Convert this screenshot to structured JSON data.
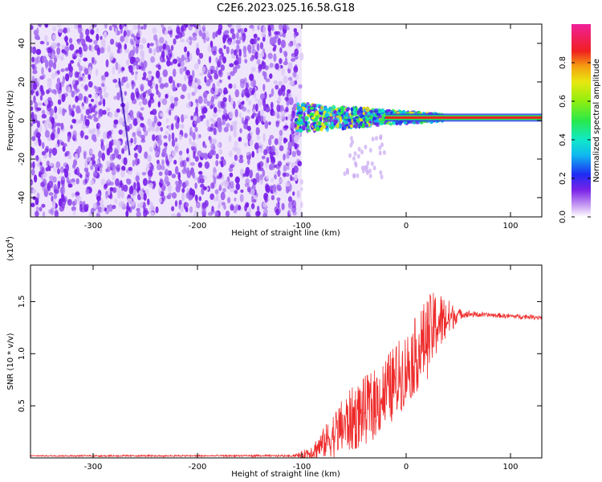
{
  "title": "C2E6.2023.025.16.58.G18",
  "colors": {
    "snr_line": "#ee2a2a",
    "waterfall_purple": "#7a22e8",
    "waterfall_light": "#d8c2f6"
  },
  "chart_data": [
    {
      "type": "heatmap",
      "id": "spectrogram",
      "xlabel": "Height of straight line (km)",
      "ylabel": "Frequency (Hz)",
      "xlim": [
        -360,
        130
      ],
      "ylim": [
        -50,
        50
      ],
      "xticks": [
        -300,
        -200,
        -100,
        0,
        100
      ],
      "xtick_labels": [
        "-300",
        "-200",
        "-100",
        "0",
        "100"
      ],
      "yticks": [
        -40,
        -20,
        0,
        20,
        40
      ],
      "ytick_labels": [
        "-40",
        "-20",
        "0",
        "20",
        "40"
      ],
      "noise_region_x": [
        -360,
        -100
      ],
      "signal_center_hz": 1.5,
      "colorbar": {
        "label": "Normalized spectral amplitude",
        "range": [
          0,
          1
        ],
        "ticks": [
          0.0,
          0.2,
          0.4,
          0.6,
          0.8
        ],
        "tick_labels": [
          "0.0",
          "0.2",
          "0.4",
          "0.6",
          "0.8"
        ]
      }
    },
    {
      "type": "line",
      "id": "snr",
      "xlabel": "Height of straight line (km)",
      "ylabel": "SNR (10 * v/v)",
      "scale_label": "(x10",
      "scale_exponent": "4",
      "scale_suffix": ")",
      "xlim": [
        -360,
        130
      ],
      "ylim": [
        0,
        1.85
      ],
      "xticks": [
        -300,
        -200,
        -100,
        0,
        100
      ],
      "xtick_labels": [
        "-300",
        "-200",
        "-100",
        "0",
        "100"
      ],
      "yticks": [
        0.5,
        1.0,
        1.5
      ],
      "ytick_labels": [
        "0.5",
        "1.0",
        "1.5"
      ],
      "series": [
        {
          "name": "SNR",
          "x": [
            -360,
            -300,
            -200,
            -110,
            -100,
            -90,
            -80,
            -70,
            -60,
            -50,
            -40,
            -30,
            -20,
            -10,
            0,
            10,
            20,
            30,
            40,
            50,
            60,
            80,
            100,
            130
          ],
          "y": [
            0.02,
            0.02,
            0.02,
            0.02,
            0.03,
            0.06,
            0.13,
            0.22,
            0.31,
            0.38,
            0.45,
            0.52,
            0.62,
            0.74,
            0.85,
            1.0,
            1.15,
            1.3,
            1.33,
            1.38,
            1.38,
            1.37,
            1.36,
            1.35
          ],
          "noise": [
            0.0,
            0.005,
            0.005,
            0.006,
            0.03,
            0.08,
            0.14,
            0.22,
            0.28,
            0.32,
            0.33,
            0.34,
            0.36,
            0.36,
            0.36,
            0.37,
            0.4,
            0.32,
            0.2,
            0.05,
            0.03,
            0.02,
            0.02,
            0.02
          ]
        }
      ]
    }
  ]
}
